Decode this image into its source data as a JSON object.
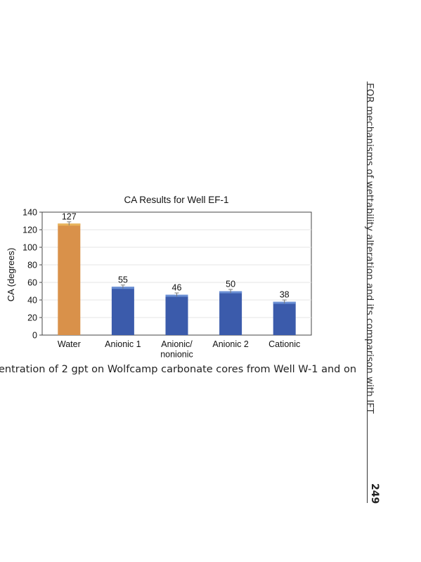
{
  "page": {
    "caption": "entration of 2 gpt on Wolfcamp carbonate cores from Well W-1 and on",
    "running_head": "EOR mechanisms of wettability alteration and its comparison with IFT",
    "page_number": "249"
  },
  "chart_data": {
    "type": "bar",
    "title": "CA Results for Well EF-1",
    "ylabel": "CA (degrees)",
    "xlabel": "",
    "categories": [
      [
        "Water"
      ],
      [
        "Anionic 1"
      ],
      [
        "Anionic/",
        "nonionic"
      ],
      [
        "Anionic 2"
      ],
      [
        "Cationic"
      ]
    ],
    "values": [
      127,
      55,
      46,
      50,
      38
    ],
    "error": [
      2,
      2,
      2,
      2,
      2
    ],
    "ylim": [
      0,
      140
    ],
    "yticks": [
      0,
      20,
      40,
      60,
      80,
      100,
      120,
      140
    ],
    "grid": true,
    "bar_colors": [
      "#d9914a",
      "#3b5bab",
      "#3b5bab",
      "#3b5bab",
      "#3b5bab"
    ],
    "bar_highlight_colors": [
      "#e8b45c",
      "#6a8fd4",
      "#6a8fd4",
      "#6a8fd4",
      "#6a8fd4"
    ]
  }
}
